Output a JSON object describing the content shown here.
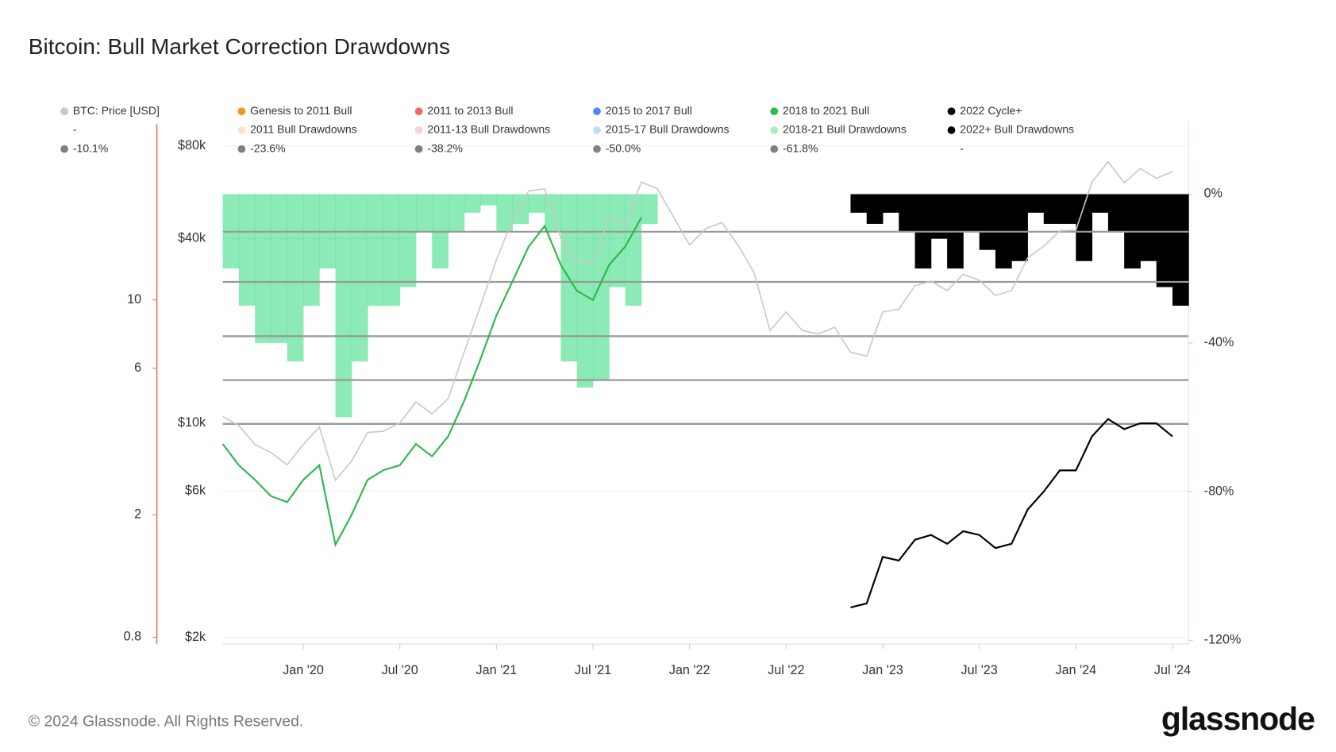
{
  "chart_data": {
    "type": "line",
    "title": "Bitcoin: Bull Market Correction Drawdowns",
    "footer": "© 2024 Glassnode. All Rights Reserved.",
    "brand": "glassnode",
    "x": [
      "2019-08",
      "2019-09",
      "2019-10",
      "2019-11",
      "2019-12",
      "2020-01",
      "2020-02",
      "2020-03",
      "2020-04",
      "2020-05",
      "2020-06",
      "2020-07",
      "2020-08",
      "2020-09",
      "2020-10",
      "2020-11",
      "2020-12",
      "2021-01",
      "2021-02",
      "2021-03",
      "2021-04",
      "2021-05",
      "2021-06",
      "2021-07",
      "2021-08",
      "2021-09",
      "2021-10",
      "2021-11",
      "2021-12",
      "2022-01",
      "2022-02",
      "2022-03",
      "2022-04",
      "2022-05",
      "2022-06",
      "2022-07",
      "2022-08",
      "2022-09",
      "2022-10",
      "2022-11",
      "2022-12",
      "2023-01",
      "2023-02",
      "2023-03",
      "2023-04",
      "2023-05",
      "2023-06",
      "2023-07",
      "2023-08",
      "2023-09",
      "2023-10",
      "2023-11",
      "2023-12",
      "2024-01",
      "2024-02",
      "2024-03",
      "2024-04",
      "2024-05",
      "2024-06",
      "2024-07"
    ],
    "xlim": [
      "2019-08",
      "2024-08"
    ],
    "xticks": [
      {
        "value": "2020-01",
        "label": "Jan '20"
      },
      {
        "value": "2020-07",
        "label": "Jul '20"
      },
      {
        "value": "2021-01",
        "label": "Jan '21"
      },
      {
        "value": "2021-07",
        "label": "Jul '21"
      },
      {
        "value": "2022-01",
        "label": "Jan '22"
      },
      {
        "value": "2022-07",
        "label": "Jul '22"
      },
      {
        "value": "2023-01",
        "label": "Jan '23"
      },
      {
        "value": "2023-07",
        "label": "Jul '23"
      },
      {
        "value": "2024-01",
        "label": "Jan '24"
      },
      {
        "value": "2024-07",
        "label": "Jul '24"
      }
    ],
    "ylog": true,
    "ylim": [
      1900,
      96000
    ],
    "yticks": [
      {
        "value": 2000,
        "label": "$2k"
      },
      {
        "value": 6000,
        "label": "$6k"
      },
      {
        "value": 10000,
        "label": "$10k"
      },
      {
        "value": 40000,
        "label": "$40k"
      },
      {
        "value": 80000,
        "label": "$80k"
      }
    ],
    "y2lim": [
      -121,
      19.5
    ],
    "y2ticks": [
      {
        "value": 0,
        "label": "0%"
      },
      {
        "value": -40,
        "label": "-40%"
      },
      {
        "value": -80,
        "label": "-80%"
      },
      {
        "value": -120,
        "label": "-120%"
      }
    ],
    "y3log": true,
    "y3lim": [
      0.76,
      38
    ],
    "y3ticks": [
      0.8,
      2,
      6,
      10
    ],
    "y3_axis_color": "#e57373",
    "grid": true,
    "series": [
      {
        "name": "BTC: Price [USD]",
        "color": "#c8c8c8",
        "type": "line",
        "axis": "y",
        "values": [
          10500,
          9800,
          8500,
          8000,
          7300,
          8500,
          9700,
          6500,
          7500,
          9300,
          9400,
          10000,
          11700,
          10700,
          12000,
          17000,
          24000,
          34000,
          46000,
          57000,
          58000,
          40000,
          34000,
          33000,
          47000,
          44000,
          61000,
          58000,
          47000,
          38000,
          43000,
          45000,
          38000,
          31000,
          20000,
          23000,
          20000,
          19500,
          20500,
          17000,
          16500,
          23000,
          23500,
          28000,
          29000,
          27000,
          30500,
          29200,
          26000,
          27000,
          34500,
          37700,
          42300,
          42500,
          61000,
          71000,
          60600,
          67500,
          62700,
          66000
        ]
      },
      {
        "name": "Genesis to 2011 Bull",
        "color": "#f7931a"
      },
      {
        "name": "2011 to 2013 Bull",
        "color": "#f06565"
      },
      {
        "name": "2015 to 2017 Bull",
        "color": "#4a8af4"
      },
      {
        "name": "2018 to 2021 Bull",
        "color": "#2db84d",
        "type": "line",
        "axis": "y3",
        "values": [
          3.4,
          2.9,
          2.6,
          2.3,
          2.2,
          2.6,
          2.9,
          1.6,
          2.0,
          2.6,
          2.8,
          2.9,
          3.4,
          3.1,
          3.6,
          4.7,
          6.4,
          8.9,
          11.5,
          14.9,
          17.4,
          13.0,
          10.7,
          10.0,
          13.0,
          14.9,
          18.5,
          null,
          null,
          null,
          null,
          null,
          null,
          null,
          null,
          null,
          null,
          null,
          null,
          null,
          null,
          null,
          null,
          null,
          null,
          null,
          null,
          null,
          null,
          null,
          null,
          null,
          null,
          null,
          null,
          null,
          null,
          null,
          null,
          null
        ]
      },
      {
        "name": "2022 Cycle+",
        "color": "#000000",
        "type": "line",
        "axis": "y3",
        "values": [
          null,
          null,
          null,
          null,
          null,
          null,
          null,
          null,
          null,
          null,
          null,
          null,
          null,
          null,
          null,
          null,
          null,
          null,
          null,
          null,
          null,
          null,
          null,
          null,
          null,
          null,
          null,
          null,
          null,
          null,
          null,
          null,
          null,
          null,
          null,
          null,
          null,
          null,
          null,
          1.0,
          1.03,
          1.46,
          1.42,
          1.66,
          1.72,
          1.61,
          1.77,
          1.72,
          1.56,
          1.61,
          2.08,
          2.38,
          2.79,
          2.79,
          3.6,
          4.1,
          3.8,
          3.97,
          3.97,
          3.6
        ]
      },
      {
        "name": "-"
      },
      {
        "name": "2011 Bull Drawdowns",
        "color": "#fde3c0"
      },
      {
        "name": "2011-13 Bull Drawdowns",
        "color": "#fbd0d0"
      },
      {
        "name": "2015-17 Bull Drawdowns",
        "color": "#b9def8"
      },
      {
        "name": "2018-21 Bull Drawdowns",
        "color": "#a8eec4",
        "type": "bar",
        "axis": "y2",
        "bar_color": "#3ddc84",
        "values": [
          -20,
          -30,
          -40,
          -40,
          -45,
          -30,
          -20,
          -60,
          -45,
          -30,
          -30,
          -25,
          -10,
          -20,
          -10,
          -5,
          -3,
          -10,
          -8,
          -5,
          -10,
          -45,
          -52,
          -50,
          -25,
          -30,
          -8,
          null,
          null,
          null,
          null,
          null,
          null,
          null,
          null,
          null,
          null,
          null,
          null,
          null,
          null,
          null,
          null,
          null,
          null,
          null,
          null,
          null,
          null,
          null,
          null,
          null,
          null,
          null,
          null,
          null,
          null,
          null,
          null,
          null
        ]
      },
      {
        "name": "2022+ Bull Drawdowns",
        "color": "#000000",
        "type": "bar",
        "axis": "y2",
        "bar_color": "#000000",
        "values": [
          null,
          null,
          null,
          null,
          null,
          null,
          null,
          null,
          null,
          null,
          null,
          null,
          null,
          null,
          null,
          null,
          null,
          null,
          null,
          null,
          null,
          null,
          null,
          null,
          null,
          null,
          null,
          null,
          null,
          null,
          null,
          null,
          null,
          null,
          null,
          null,
          null,
          null,
          null,
          -5,
          -8,
          -5,
          -10,
          -20,
          -12,
          -20,
          -10,
          -15,
          -20,
          -18,
          -5,
          -8,
          -8,
          -18,
          -5,
          -10,
          -20,
          -18,
          -25,
          -30
        ]
      },
      {
        "name": "-10.1%",
        "color": "#808080",
        "type": "level",
        "axis": "y2",
        "value": -10.1
      },
      {
        "name": "-23.6%",
        "color": "#808080",
        "type": "level",
        "axis": "y2",
        "value": -23.6
      },
      {
        "name": "-38.2%",
        "color": "#808080",
        "type": "level",
        "axis": "y2",
        "value": -38.2
      },
      {
        "name": "-50.0%",
        "color": "#808080",
        "type": "level",
        "axis": "y2",
        "value": -50.0
      },
      {
        "name": "-61.8%",
        "color": "#808080",
        "type": "level",
        "axis": "y2",
        "value": -61.8
      },
      {
        "name": "-"
      }
    ]
  }
}
